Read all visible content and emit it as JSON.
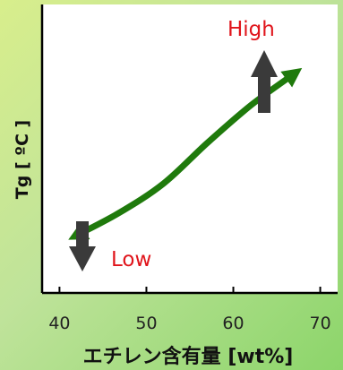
{
  "chart_data": {
    "type": "line",
    "xlabel": "エチレン含有量 [wt%]",
    "ylabel": "Tg [ ºC ]",
    "xlim": [
      38,
      72
    ],
    "x_ticks": [
      40,
      50,
      60,
      70
    ],
    "x_tick_labels": [
      "40",
      "50",
      "60",
      "70"
    ],
    "y_ticks": [],
    "grid": false,
    "series": [
      {
        "x": [
          42,
          47,
          52,
          57,
          62,
          67
        ],
        "y": [
          0.2,
          0.28,
          0.38,
          0.52,
          0.65,
          0.76
        ]
      }
    ],
    "annotations": [
      {
        "text": "High",
        "color": "#e0141b",
        "arrow": "up"
      },
      {
        "text": "Low",
        "color": "#e0141b",
        "arrow": "down"
      }
    ],
    "colors": {
      "curve": "#1f7a0c",
      "arrows": "#3a3a3a",
      "axes": "#000000",
      "plot_background": "#ffffff"
    }
  }
}
